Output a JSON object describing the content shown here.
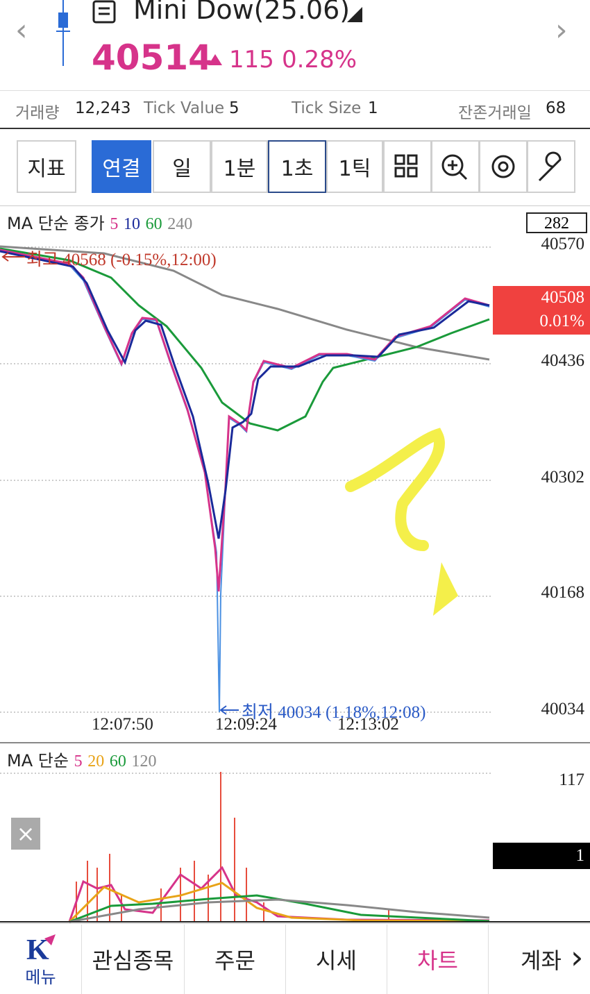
{
  "header": {
    "symbol": "Mini Dow(25.06)",
    "price": "40514",
    "change": "115",
    "change_pct": "0.28%"
  },
  "info": {
    "volume_label": "거래량",
    "volume": "12,243",
    "tick_value_label": "Tick Value",
    "tick_value": "5",
    "tick_size_label": "Tick Size",
    "tick_size": "1",
    "remaining_days_label": "잔존거래일",
    "remaining_days": "68"
  },
  "toolbar": [
    "지표",
    "연결",
    "일",
    "1분",
    "1초",
    "1틱"
  ],
  "price_chart": {
    "legend_title": "MA 단순 종가",
    "legend_periods": [
      "5",
      "10",
      "60",
      "240"
    ],
    "box_value": "282",
    "axis_labels": [
      "40570",
      "40436",
      "40302",
      "40168",
      "40034"
    ],
    "current_price": "40508",
    "current_pct": "0.01%",
    "high_note": "최고 40568 (-0.15%,12:00)",
    "low_note": "최저 40034 (1.18%,12:08)",
    "time_labels": [
      "12:07:50",
      "12:09:24",
      "12:13:02"
    ]
  },
  "volume_chart": {
    "legend_title": "MA 단순",
    "legend_periods": [
      "5",
      "20",
      "60",
      "120"
    ],
    "max_label": "117",
    "current_label": "1",
    "close": "×"
  },
  "nav": [
    "메뉴",
    "관심종목",
    "주문",
    "시세",
    "차트",
    "계좌"
  ]
}
